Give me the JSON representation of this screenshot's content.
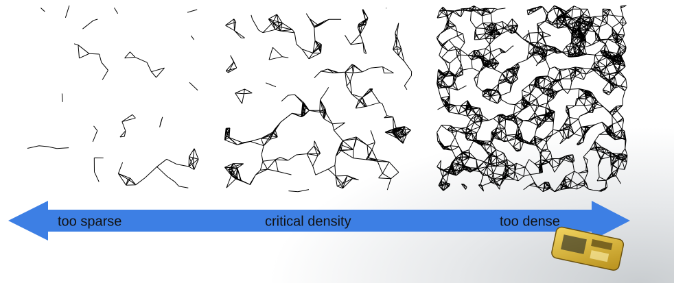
{
  "arrow": {
    "labels": [
      "too sparse",
      "critical density",
      "too dense"
    ]
  }
}
